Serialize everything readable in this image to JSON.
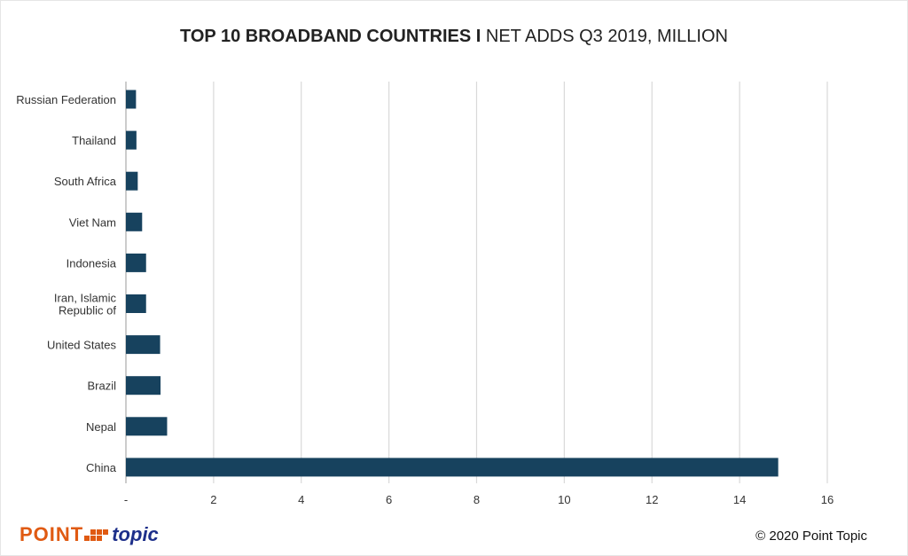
{
  "chart_data": {
    "type": "bar",
    "orientation": "horizontal",
    "title_bold": "TOP 10 BROADBAND COUNTRIES I",
    "title_rest": " NET ADDS Q3 2019, MILLION",
    "categories": [
      "Russian Federation",
      "Thailand",
      "South Africa",
      "Viet Nam",
      "Indonesia",
      "Iran, Islamic|Republic of",
      "United States",
      "Brazil",
      "Nepal",
      "China"
    ],
    "values": [
      0.23,
      0.24,
      0.27,
      0.37,
      0.46,
      0.46,
      0.78,
      0.79,
      0.94,
      14.88
    ],
    "xlim": [
      0,
      16
    ],
    "xticks": [
      0,
      2,
      4,
      6,
      8,
      10,
      12,
      14,
      16
    ],
    "xtick_labels": [
      "-",
      "2",
      "4",
      "6",
      "8",
      "10",
      "12",
      "14",
      "16"
    ],
    "grid": true,
    "bar_color": "#17425e"
  },
  "footer": {
    "logo_point": "POINT",
    "logo_topic": "topic",
    "copyright": "© 2020 Point Topic"
  }
}
